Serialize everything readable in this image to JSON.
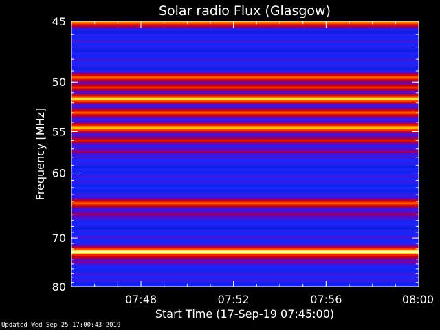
{
  "chart_data": {
    "type": "heatmap",
    "title": "Solar radio Flux (Glasgow)",
    "xlabel": "Start Time (17-Sep-19 07:45:00)",
    "ylabel": "Frequency [MHz]",
    "x_ticks": [
      "07:48",
      "07:52",
      "07:56",
      "08:00"
    ],
    "x_tick_minutes": [
      3,
      7,
      11,
      15
    ],
    "x_range_minutes": [
      0,
      15
    ],
    "y_ticks": [
      45,
      50,
      55,
      60,
      70,
      80
    ],
    "y_range_mhz": [
      45,
      80
    ],
    "y_scale": "reciprocal",
    "colormap": [
      "#000096",
      "#1428ff",
      "#6e00b4",
      "#c80000",
      "#ff3c00",
      "#ffb400",
      "#ffff96"
    ],
    "bands": [
      {
        "freq": 45.1,
        "level": 0.75
      },
      {
        "freq": 49.6,
        "level": 0.72
      },
      {
        "freq": 50.5,
        "level": 0.62
      },
      {
        "freq": 51.6,
        "level": 0.9
      },
      {
        "freq": 53.0,
        "level": 0.7
      },
      {
        "freq": 54.6,
        "level": 0.85
      },
      {
        "freq": 56.0,
        "level": 0.55
      },
      {
        "freq": 57.3,
        "level": 0.4
      },
      {
        "freq": 64.3,
        "level": 0.7
      },
      {
        "freq": 66.0,
        "level": 0.4
      },
      {
        "freq": 72.6,
        "level": 1.0
      },
      {
        "freq": 73.3,
        "level": 0.6
      },
      {
        "freq": 74.6,
        "level": 0.35
      }
    ]
  },
  "footer": "Updated Wed Sep 25 17:00:43 2019"
}
